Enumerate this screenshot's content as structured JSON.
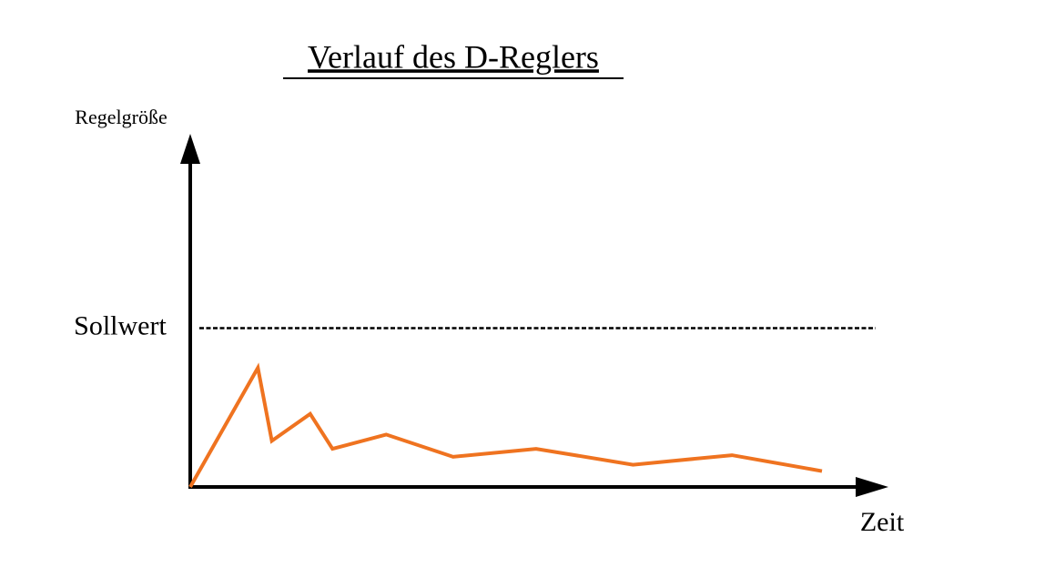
{
  "chart_data": {
    "type": "line",
    "title": "Verlauf des D-Reglers",
    "y_label": "Regelgröße",
    "x_label": "Zeit",
    "reference": {
      "label": "Sollwert",
      "value": 10
    },
    "x": [
      0,
      0.97,
      1.17,
      1.72,
      2.04,
      2.81,
      3.77,
      4.96,
      6.35,
      7.77,
      9.06
    ],
    "series": [
      {
        "color": "#ef7320",
        "values": [
          0,
          7.5,
          2.9,
          4.6,
          2.4,
          3.3,
          1.9,
          2.4,
          1.4,
          2.0,
          1.0
        ]
      }
    ],
    "xlim": [
      0,
      10
    ],
    "ylim": [
      0,
      22
    ]
  }
}
